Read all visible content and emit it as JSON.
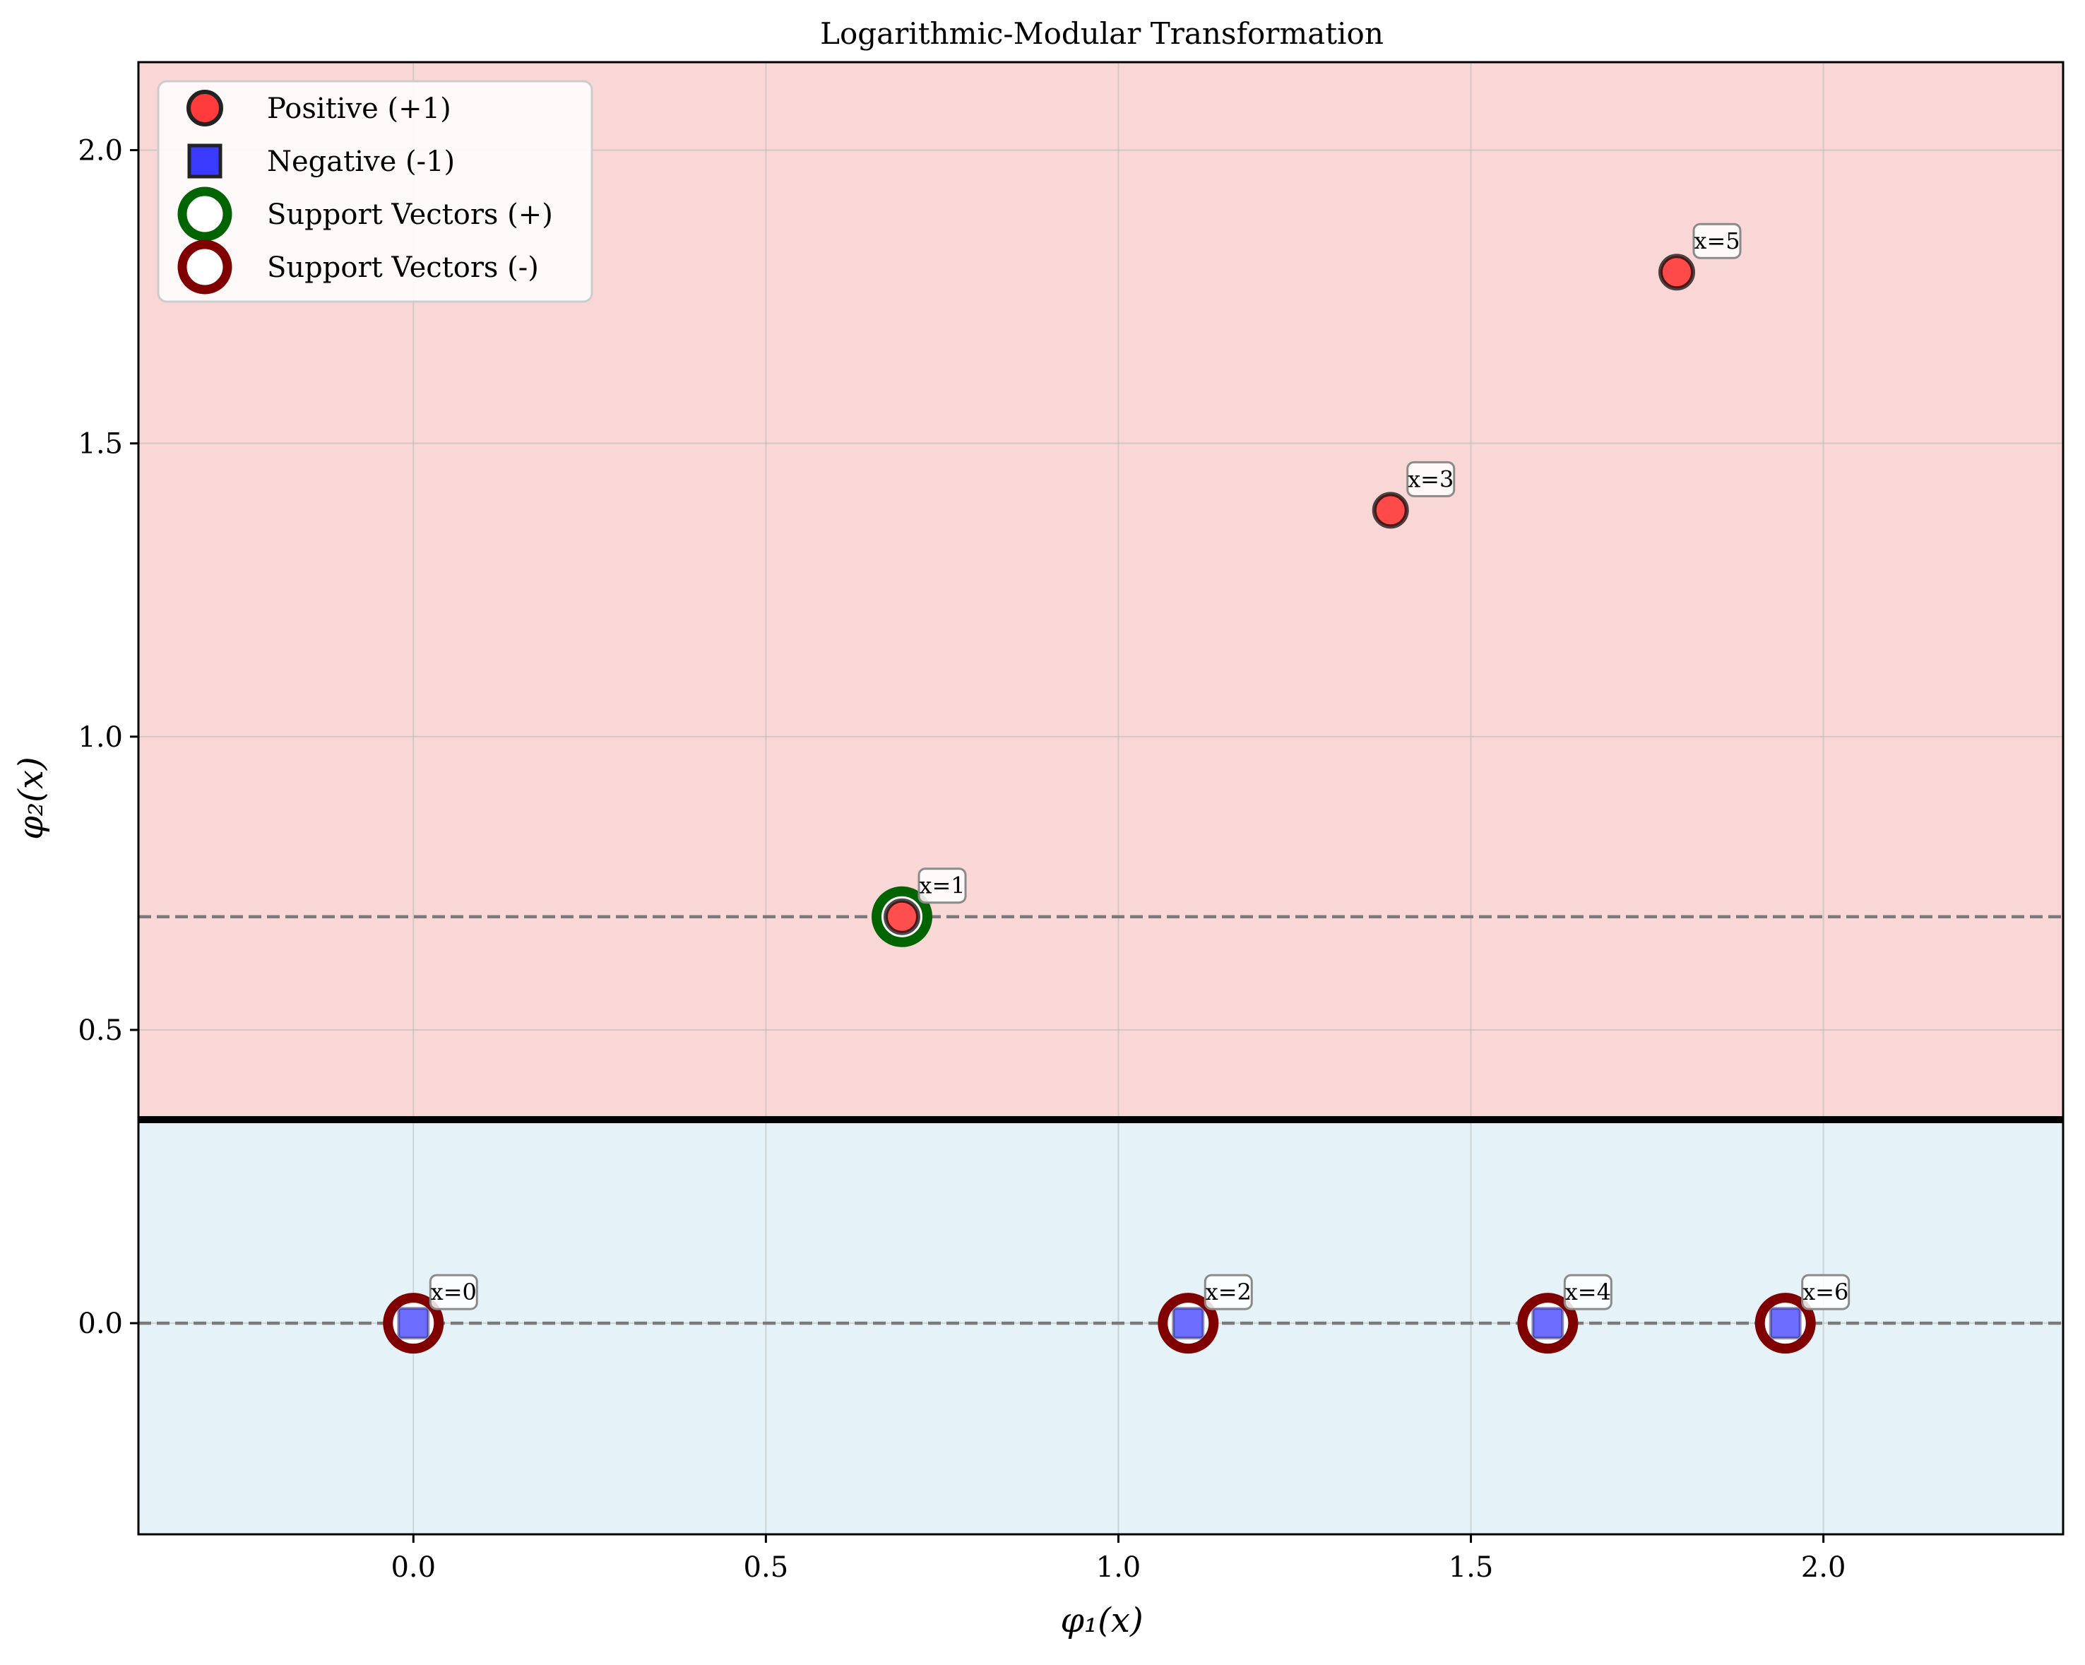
{
  "chart_data": {
    "type": "scatter",
    "title": "Logarithmic-Modular Transformation",
    "xlabel": "φ₁(x)",
    "ylabel": "φ₂(x)",
    "xlim": [
      -0.39,
      2.34
    ],
    "ylim": [
      -0.36,
      2.15
    ],
    "x_ticks": [
      0.0,
      0.5,
      1.0,
      1.5,
      2.0
    ],
    "x_tick_labels": [
      "0.0",
      "0.5",
      "1.0",
      "1.5",
      "2.0"
    ],
    "y_ticks": [
      0.0,
      0.5,
      1.0,
      1.5,
      2.0
    ],
    "y_tick_labels": [
      "0.0",
      "0.5",
      "1.0",
      "1.5",
      "2.0"
    ],
    "grid": true,
    "legend_position": "top-left",
    "decision_boundary": {
      "y": 0.347,
      "color": "#000000"
    },
    "margin_lines": [
      0.693,
      0.0
    ],
    "regions": {
      "positive_color": "#f9d7d7",
      "negative_color": "#e5f3f8"
    },
    "series": [
      {
        "name": "Positive (+1)",
        "marker": "circle",
        "color": "#ff3b3b",
        "points": [
          {
            "x": 0.693,
            "y": 0.693,
            "label": "x=1"
          },
          {
            "x": 1.386,
            "y": 1.386,
            "label": "x=3"
          },
          {
            "x": 1.792,
            "y": 1.792,
            "label": "x=5"
          }
        ]
      },
      {
        "name": "Negative (-1)",
        "marker": "square",
        "color": "#3b3bff",
        "points": [
          {
            "x": 0.0,
            "y": 0.0,
            "label": "x=0"
          },
          {
            "x": 1.099,
            "y": 0.0,
            "label": "x=2"
          },
          {
            "x": 1.609,
            "y": 0.0,
            "label": "x=4"
          },
          {
            "x": 1.946,
            "y": 0.0,
            "label": "x=6"
          }
        ]
      },
      {
        "name": "Support Vectors (+)",
        "marker": "ring",
        "color": "#006400",
        "points": [
          {
            "x": 0.693,
            "y": 0.693
          }
        ]
      },
      {
        "name": "Support Vectors (-)",
        "marker": "ring",
        "color": "#800000",
        "points": [
          {
            "x": 0.0,
            "y": 0.0
          },
          {
            "x": 1.099,
            "y": 0.0
          },
          {
            "x": 1.609,
            "y": 0.0
          },
          {
            "x": 1.946,
            "y": 0.0
          }
        ]
      }
    ]
  }
}
